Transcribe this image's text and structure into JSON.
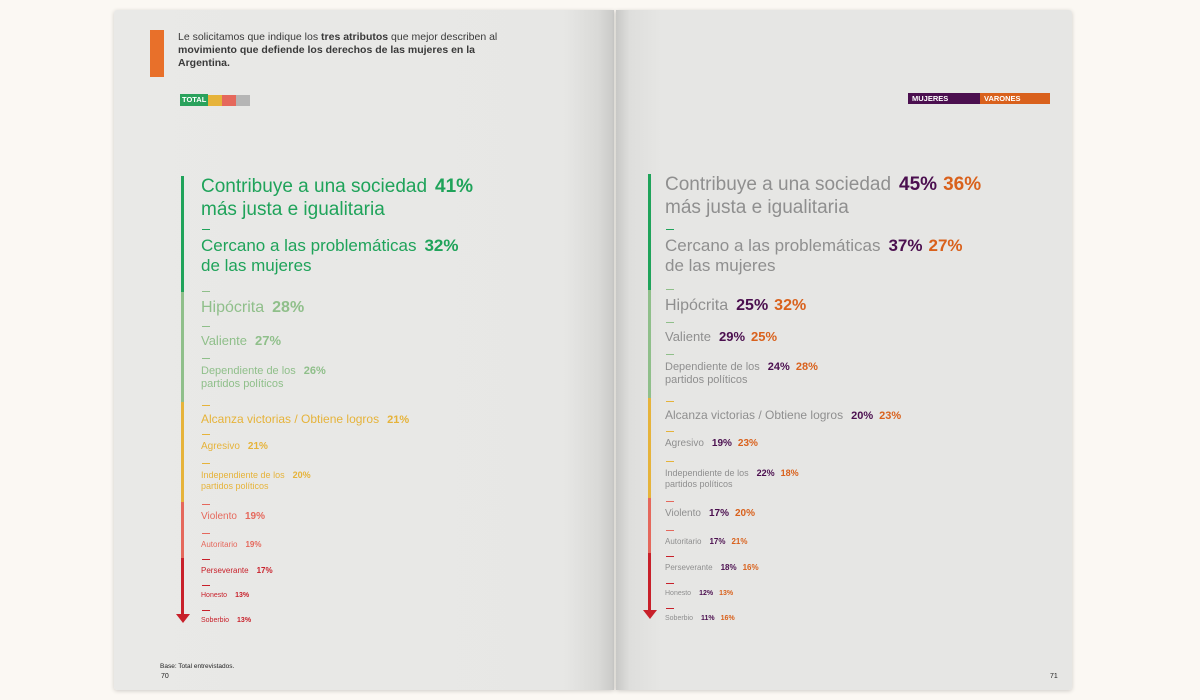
{
  "question": {
    "part1": "Le solicitamos que indique los ",
    "bold1": "tres atributos",
    "part2": " que mejor describen al ",
    "bold2": "movimiento que defiende los derechos de las mujeres en la Argentina."
  },
  "legend": {
    "total": "TOTAL",
    "mujeres": "MUJERES",
    "varones": "VARONES"
  },
  "colors": {
    "green": "#1fa35a",
    "lightgreen": "#8fbf8a",
    "yellow": "#e6b33a",
    "salmon": "#e5685c",
    "red": "#c8202a",
    "mujeres": "#4b0f4f",
    "varones": "#d9611c",
    "gray": "#8f8f8f",
    "orange": "#e8702a"
  },
  "left_items": [
    {
      "label": "Contribuye a una sociedad\nmás justa e igualitaria",
      "pct": "41%"
    },
    {
      "label": "Cercano a las problemáticas\nde las mujeres",
      "pct": "32%"
    },
    {
      "label": "Hipócrita",
      "pct": "28%"
    },
    {
      "label": "Valiente",
      "pct": "27%"
    },
    {
      "label": "Dependiente de los\npartidos políticos",
      "pct": "26%"
    },
    {
      "label": "Alcanza victorias / Obtiene logros",
      "pct": "21%"
    },
    {
      "label": "Agresivo",
      "pct": "21%"
    },
    {
      "label": "Independiente de los\npartidos políticos",
      "pct": "20%"
    },
    {
      "label": "Violento",
      "pct": "19%"
    },
    {
      "label": "Autoritario",
      "pct": "19%"
    },
    {
      "label": "Perseverante",
      "pct": "17%"
    },
    {
      "label": "Honesto",
      "pct": "13%"
    },
    {
      "label": "Soberbio",
      "pct": "13%"
    }
  ],
  "right_items": [
    {
      "label": "Contribuye a una sociedad\nmás justa e igualitaria",
      "m": "45%",
      "v": "36%"
    },
    {
      "label": "Cercano a las problemáticas\nde las mujeres",
      "m": "37%",
      "v": "27%"
    },
    {
      "label": "Hipócrita",
      "m": "25%",
      "v": "32%"
    },
    {
      "label": "Valiente",
      "m": "29%",
      "v": "25%"
    },
    {
      "label": "Dependiente de los\npartidos políticos",
      "m": "24%",
      "v": "28%"
    },
    {
      "label": "Alcanza victorias / Obtiene logros",
      "m": "20%",
      "v": "23%"
    },
    {
      "label": "Agresivo",
      "m": "19%",
      "v": "23%"
    },
    {
      "label": "Independiente de los\npartidos políticos",
      "m": "22%",
      "v": "18%"
    },
    {
      "label": "Violento",
      "m": "17%",
      "v": "20%"
    },
    {
      "label": "Autoritario",
      "m": "17%",
      "v": "21%"
    },
    {
      "label": "Perseverante",
      "m": "18%",
      "v": "16%"
    },
    {
      "label": "Honesto",
      "m": "12%",
      "v": "13%"
    },
    {
      "label": "Soberbio",
      "m": "11%",
      "v": "16%"
    }
  ],
  "footnote": "Base: Total entrevistados.",
  "page_left": "70",
  "page_right": "71"
}
